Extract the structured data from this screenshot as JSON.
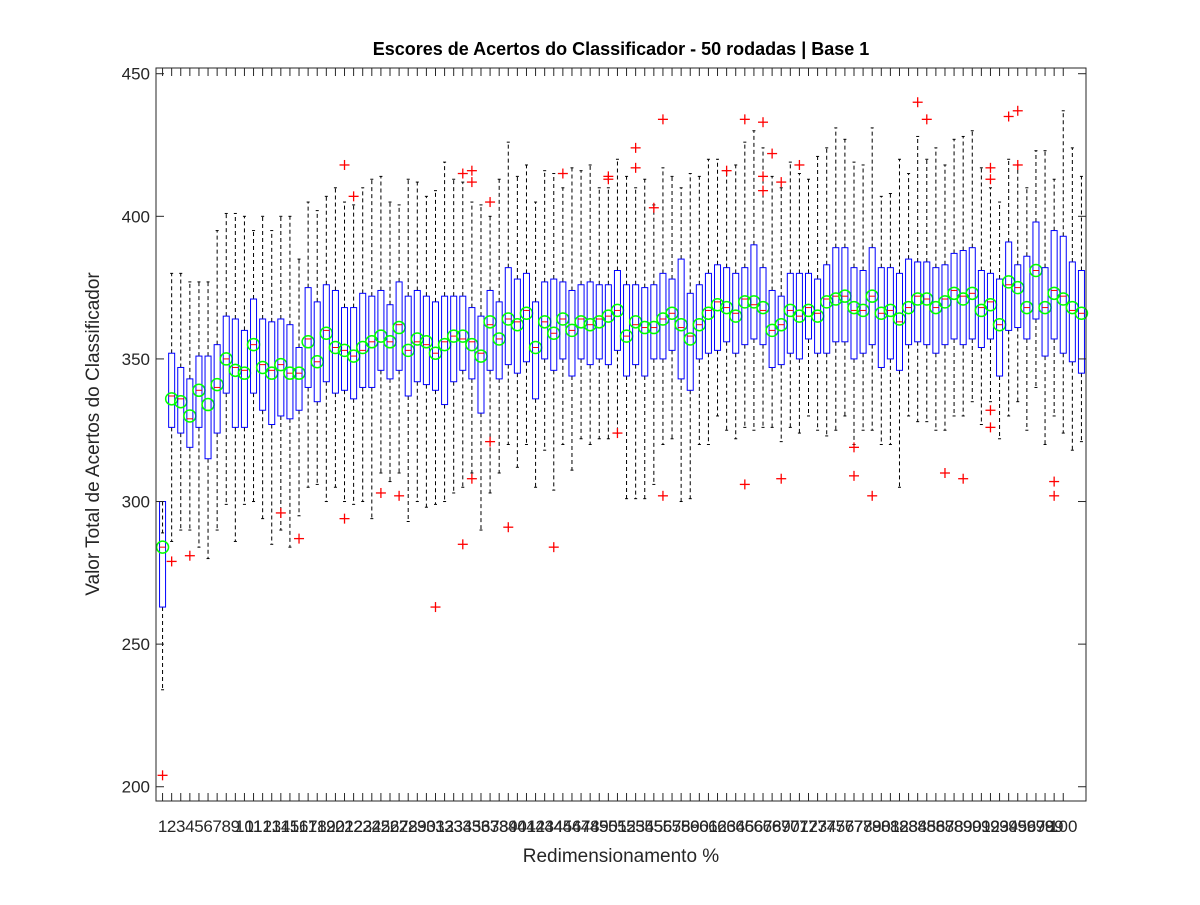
{
  "chart_data": {
    "type": "boxplot",
    "title": "Escores de Acertos do Classificador - 50 rodadas | Base 1",
    "xlabel": "Redimensionamento %",
    "ylabel": "Valor Total de Acertos do Classificador",
    "ylim": [
      195,
      452
    ],
    "y_ticks": [
      200,
      250,
      300,
      350,
      400,
      450
    ],
    "x_ticks": [
      "1",
      "2",
      "3",
      "4",
      "5",
      "6",
      "7",
      "8",
      "9",
      "10",
      "11",
      "12",
      "13",
      "14",
      "15",
      "16",
      "17",
      "18",
      "19",
      "20",
      "21",
      "22",
      "23",
      "24",
      "25",
      "26",
      "27",
      "28",
      "29",
      "30",
      "31",
      "32",
      "33",
      "34",
      "35",
      "36",
      "37",
      "38",
      "39",
      "40",
      "41",
      "42",
      "43",
      "44",
      "45",
      "46",
      "47",
      "48",
      "49",
      "50",
      "51",
      "52",
      "53",
      "54",
      "55",
      "56",
      "57",
      "58",
      "59",
      "60",
      "61",
      "62",
      "63",
      "64",
      "65",
      "66",
      "67",
      "68",
      "69",
      "70",
      "71",
      "72",
      "73",
      "74",
      "75",
      "76",
      "77",
      "78",
      "79",
      "80",
      "81",
      "82",
      "83",
      "84",
      "85",
      "86",
      "87",
      "88",
      "89",
      "90",
      "91",
      "92",
      "93",
      "94",
      "95",
      "96",
      "97",
      "98",
      "99",
      "100"
    ],
    "colors": {
      "box": "#0000ff",
      "whisker": "#000000",
      "median": "#ff0000",
      "outlier": "#ff0000",
      "mean_marker": "#00ff00",
      "axis": "#262626"
    },
    "boxes": [
      {
        "q1": 263,
        "median": 284,
        "q3": 300,
        "mean": 284,
        "wlow": 234,
        "whigh": 289,
        "outliers": [
          204
        ]
      },
      {
        "q1": 326,
        "median": 337,
        "q3": 352,
        "mean": 336,
        "wlow": 286,
        "whigh": 380,
        "outliers": [
          279
        ]
      },
      {
        "q1": 324,
        "median": 336,
        "q3": 347,
        "mean": 335,
        "wlow": 290,
        "whigh": 380,
        "outliers": []
      },
      {
        "q1": 319,
        "median": 329,
        "q3": 343,
        "mean": 330,
        "wlow": 290,
        "whigh": 377,
        "outliers": [
          281
        ]
      },
      {
        "q1": 326,
        "median": 339,
        "q3": 351,
        "mean": 339,
        "wlow": 284,
        "whigh": 377,
        "outliers": []
      },
      {
        "q1": 315,
        "median": 332,
        "q3": 351,
        "mean": 334,
        "wlow": 280,
        "whigh": 377,
        "outliers": []
      },
      {
        "q1": 324,
        "median": 340,
        "q3": 355,
        "mean": 341,
        "wlow": 290,
        "whigh": 395,
        "outliers": []
      },
      {
        "q1": 338,
        "median": 350,
        "q3": 365,
        "mean": 350,
        "wlow": 299,
        "whigh": 401,
        "outliers": []
      },
      {
        "q1": 326,
        "median": 347,
        "q3": 364,
        "mean": 346,
        "wlow": 286,
        "whigh": 401,
        "outliers": []
      },
      {
        "q1": 326,
        "median": 346,
        "q3": 360,
        "mean": 345,
        "wlow": 299,
        "whigh": 400,
        "outliers": []
      },
      {
        "q1": 338,
        "median": 355,
        "q3": 371,
        "mean": 355,
        "wlow": 300,
        "whigh": 395,
        "outliers": []
      },
      {
        "q1": 332,
        "median": 348,
        "q3": 364,
        "mean": 347,
        "wlow": 294,
        "whigh": 400,
        "outliers": []
      },
      {
        "q1": 327,
        "median": 346,
        "q3": 363,
        "mean": 345,
        "wlow": 285,
        "whigh": 395,
        "outliers": []
      },
      {
        "q1": 330,
        "median": 348,
        "q3": 364,
        "mean": 348,
        "wlow": 290,
        "whigh": 400,
        "outliers": [
          296
        ]
      },
      {
        "q1": 329,
        "median": 345,
        "q3": 362,
        "mean": 345,
        "wlow": 284,
        "whigh": 400,
        "outliers": []
      },
      {
        "q1": 332,
        "median": 345,
        "q3": 354,
        "mean": 345,
        "wlow": 295,
        "whigh": 385,
        "outliers": [
          287
        ]
      },
      {
        "q1": 340,
        "median": 357,
        "q3": 375,
        "mean": 356,
        "wlow": 305,
        "whigh": 405,
        "outliers": []
      },
      {
        "q1": 335,
        "median": 349,
        "q3": 370,
        "mean": 349,
        "wlow": 306,
        "whigh": 402,
        "outliers": []
      },
      {
        "q1": 342,
        "median": 360,
        "q3": 376,
        "mean": 359,
        "wlow": 300,
        "whigh": 407,
        "outliers": []
      },
      {
        "q1": 338,
        "median": 354,
        "q3": 374,
        "mean": 354,
        "wlow": 305,
        "whigh": 410,
        "outliers": []
      },
      {
        "q1": 339,
        "median": 353,
        "q3": 368,
        "mean": 353,
        "wlow": 300,
        "whigh": 405,
        "outliers": [
          418,
          294
        ]
      },
      {
        "q1": 336,
        "median": 351,
        "q3": 368,
        "mean": 351,
        "wlow": 299,
        "whigh": 404,
        "outliers": [
          407
        ]
      },
      {
        "q1": 340,
        "median": 353,
        "q3": 373,
        "mean": 354,
        "wlow": 300,
        "whigh": 410,
        "outliers": []
      },
      {
        "q1": 340,
        "median": 356,
        "q3": 372,
        "mean": 356,
        "wlow": 294,
        "whigh": 413,
        "outliers": []
      },
      {
        "q1": 346,
        "median": 360,
        "q3": 374,
        "mean": 358,
        "wlow": 310,
        "whigh": 414,
        "outliers": [
          303
        ]
      },
      {
        "q1": 343,
        "median": 356,
        "q3": 369,
        "mean": 356,
        "wlow": 307,
        "whigh": 405,
        "outliers": []
      },
      {
        "q1": 346,
        "median": 362,
        "q3": 377,
        "mean": 361,
        "wlow": 310,
        "whigh": 404,
        "outliers": [
          302
        ]
      },
      {
        "q1": 337,
        "median": 353,
        "q3": 372,
        "mean": 353,
        "wlow": 293,
        "whigh": 413,
        "outliers": []
      },
      {
        "q1": 342,
        "median": 356,
        "q3": 374,
        "mean": 357,
        "wlow": 300,
        "whigh": 412,
        "outliers": []
      },
      {
        "q1": 341,
        "median": 355,
        "q3": 372,
        "mean": 356,
        "wlow": 298,
        "whigh": 407,
        "outliers": []
      },
      {
        "q1": 339,
        "median": 352,
        "q3": 370,
        "mean": 352,
        "wlow": 299,
        "whigh": 409,
        "outliers": [
          263
        ]
      },
      {
        "q1": 334,
        "median": 356,
        "q3": 372,
        "mean": 355,
        "wlow": 300,
        "whigh": 419,
        "outliers": []
      },
      {
        "q1": 342,
        "median": 358,
        "q3": 372,
        "mean": 358,
        "wlow": 303,
        "whigh": 413,
        "outliers": []
      },
      {
        "q1": 346,
        "median": 357,
        "q3": 372,
        "mean": 358,
        "wlow": 305,
        "whigh": 412,
        "outliers": [
          415,
          285
        ]
      },
      {
        "q1": 343,
        "median": 356,
        "q3": 368,
        "mean": 355,
        "wlow": 310,
        "whigh": 405,
        "outliers": [
          416,
          412,
          308
        ]
      },
      {
        "q1": 331,
        "median": 352,
        "q3": 365,
        "mean": 351,
        "wlow": 290,
        "whigh": 404,
        "outliers": []
      },
      {
        "q1": 346,
        "median": 362,
        "q3": 374,
        "mean": 363,
        "wlow": 303,
        "whigh": 400,
        "outliers": [
          405,
          321
        ]
      },
      {
        "q1": 343,
        "median": 357,
        "q3": 370,
        "mean": 357,
        "wlow": 310,
        "whigh": 413,
        "outliers": []
      },
      {
        "q1": 348,
        "median": 364,
        "q3": 382,
        "mean": 364,
        "wlow": 320,
        "whigh": 426,
        "outliers": [
          291
        ]
      },
      {
        "q1": 345,
        "median": 363,
        "q3": 378,
        "mean": 362,
        "wlow": 312,
        "whigh": 414,
        "outliers": []
      },
      {
        "q1": 349,
        "median": 367,
        "q3": 380,
        "mean": 366,
        "wlow": 320,
        "whigh": 418,
        "outliers": []
      },
      {
        "q1": 336,
        "median": 354,
        "q3": 370,
        "mean": 354,
        "wlow": 305,
        "whigh": 405,
        "outliers": []
      },
      {
        "q1": 350,
        "median": 363,
        "q3": 377,
        "mean": 363,
        "wlow": 318,
        "whigh": 416,
        "outliers": []
      },
      {
        "q1": 346,
        "median": 359,
        "q3": 378,
        "mean": 359,
        "wlow": 304,
        "whigh": 415,
        "outliers": [
          284
        ]
      },
      {
        "q1": 350,
        "median": 364,
        "q3": 377,
        "mean": 364,
        "wlow": 320,
        "whigh": 410,
        "outliers": [
          415
        ]
      },
      {
        "q1": 344,
        "median": 360,
        "q3": 374,
        "mean": 360,
        "wlow": 311,
        "whigh": 417,
        "outliers": []
      },
      {
        "q1": 350,
        "median": 364,
        "q3": 376,
        "mean": 363,
        "wlow": 322,
        "whigh": 416,
        "outliers": []
      },
      {
        "q1": 348,
        "median": 362,
        "q3": 377,
        "mean": 362,
        "wlow": 320,
        "whigh": 418,
        "outliers": []
      },
      {
        "q1": 350,
        "median": 364,
        "q3": 376,
        "mean": 363,
        "wlow": 322,
        "whigh": 410,
        "outliers": []
      },
      {
        "q1": 348,
        "median": 365,
        "q3": 376,
        "mean": 365,
        "wlow": 322,
        "whigh": 410,
        "outliers": [
          414,
          413
        ]
      },
      {
        "q1": 353,
        "median": 367,
        "q3": 381,
        "mean": 367,
        "wlow": 324,
        "whigh": 420,
        "outliers": [
          324
        ]
      },
      {
        "q1": 344,
        "median": 358,
        "q3": 376,
        "mean": 358,
        "wlow": 301,
        "whigh": 414,
        "outliers": []
      },
      {
        "q1": 348,
        "median": 362,
        "q3": 376,
        "mean": 363,
        "wlow": 301,
        "whigh": 410,
        "outliers": [
          424,
          417
        ]
      },
      {
        "q1": 344,
        "median": 361,
        "q3": 375,
        "mean": 361,
        "wlow": 301,
        "whigh": 413,
        "outliers": []
      },
      {
        "q1": 350,
        "median": 361,
        "q3": 376,
        "mean": 361,
        "wlow": 306,
        "whigh": 404,
        "outliers": [
          403
        ]
      },
      {
        "q1": 350,
        "median": 364,
        "q3": 380,
        "mean": 364,
        "wlow": 320,
        "whigh": 417,
        "outliers": [
          434,
          302
        ]
      },
      {
        "q1": 353,
        "median": 366,
        "q3": 378,
        "mean": 366,
        "wlow": 322,
        "whigh": 414,
        "outliers": []
      },
      {
        "q1": 343,
        "median": 361,
        "q3": 385,
        "mean": 362,
        "wlow": 300,
        "whigh": 410,
        "outliers": []
      },
      {
        "q1": 339,
        "median": 358,
        "q3": 373,
        "mean": 357,
        "wlow": 301,
        "whigh": 415,
        "outliers": []
      },
      {
        "q1": 350,
        "median": 362,
        "q3": 376,
        "mean": 362,
        "wlow": 320,
        "whigh": 414,
        "outliers": []
      },
      {
        "q1": 352,
        "median": 367,
        "q3": 380,
        "mean": 366,
        "wlow": 320,
        "whigh": 420,
        "outliers": []
      },
      {
        "q1": 353,
        "median": 370,
        "q3": 383,
        "mean": 369,
        "wlow": 330,
        "whigh": 420,
        "outliers": []
      },
      {
        "q1": 356,
        "median": 368,
        "q3": 382,
        "mean": 368,
        "wlow": 325,
        "whigh": 416,
        "outliers": [
          416
        ]
      },
      {
        "q1": 352,
        "median": 366,
        "q3": 380,
        "mean": 365,
        "wlow": 322,
        "whigh": 418,
        "outliers": []
      },
      {
        "q1": 355,
        "median": 371,
        "q3": 382,
        "mean": 370,
        "wlow": 326,
        "whigh": 426,
        "outliers": [
          434,
          306
        ]
      },
      {
        "q1": 357,
        "median": 369,
        "q3": 390,
        "mean": 370,
        "wlow": 325,
        "whigh": 430,
        "outliers": []
      },
      {
        "q1": 355,
        "median": 367,
        "q3": 382,
        "mean": 368,
        "wlow": 326,
        "whigh": 424,
        "outliers": [
          433,
          414,
          409
        ]
      },
      {
        "q1": 347,
        "median": 360,
        "q3": 374,
        "mean": 360,
        "wlow": 326,
        "whigh": 414,
        "outliers": [
          422
        ]
      },
      {
        "q1": 348,
        "median": 362,
        "q3": 372,
        "mean": 362,
        "wlow": 321,
        "whigh": 410,
        "outliers": [
          412,
          308
        ]
      },
      {
        "q1": 352,
        "median": 367,
        "q3": 380,
        "mean": 367,
        "wlow": 326,
        "whigh": 419,
        "outliers": []
      },
      {
        "q1": 350,
        "median": 365,
        "q3": 380,
        "mean": 365,
        "wlow": 324,
        "whigh": 415,
        "outliers": [
          418
        ]
      },
      {
        "q1": 357,
        "median": 368,
        "q3": 380,
        "mean": 367,
        "wlow": 330,
        "whigh": 413,
        "outliers": []
      },
      {
        "q1": 352,
        "median": 366,
        "q3": 378,
        "mean": 365,
        "wlow": 325,
        "whigh": 421,
        "outliers": []
      },
      {
        "q1": 352,
        "median": 371,
        "q3": 383,
        "mean": 370,
        "wlow": 323,
        "whigh": 424,
        "outliers": []
      },
      {
        "q1": 356,
        "median": 372,
        "q3": 389,
        "mean": 371,
        "wlow": 325,
        "whigh": 431,
        "outliers": []
      },
      {
        "q1": 356,
        "median": 372,
        "q3": 389,
        "mean": 372,
        "wlow": 330,
        "whigh": 427,
        "outliers": []
      },
      {
        "q1": 350,
        "median": 367,
        "q3": 382,
        "mean": 368,
        "wlow": 320,
        "whigh": 419,
        "outliers": [
          319,
          309
        ]
      },
      {
        "q1": 352,
        "median": 367,
        "q3": 381,
        "mean": 367,
        "wlow": 325,
        "whigh": 418,
        "outliers": []
      },
      {
        "q1": 355,
        "median": 372,
        "q3": 389,
        "mean": 372,
        "wlow": 325,
        "whigh": 431,
        "outliers": [
          302
        ]
      },
      {
        "q1": 347,
        "median": 366,
        "q3": 382,
        "mean": 366,
        "wlow": 320,
        "whigh": 407,
        "outliers": []
      },
      {
        "q1": 350,
        "median": 367,
        "q3": 382,
        "mean": 367,
        "wlow": 320,
        "whigh": 408,
        "outliers": []
      },
      {
        "q1": 346,
        "median": 363,
        "q3": 380,
        "mean": 364,
        "wlow": 305,
        "whigh": 420,
        "outliers": []
      },
      {
        "q1": 355,
        "median": 368,
        "q3": 385,
        "mean": 368,
        "wlow": 330,
        "whigh": 415,
        "outliers": []
      },
      {
        "q1": 356,
        "median": 372,
        "q3": 384,
        "mean": 371,
        "wlow": 328,
        "whigh": 428,
        "outliers": [
          440
        ]
      },
      {
        "q1": 355,
        "median": 371,
        "q3": 384,
        "mean": 371,
        "wlow": 328,
        "whigh": 420,
        "outliers": [
          434
        ]
      },
      {
        "q1": 352,
        "median": 368,
        "q3": 382,
        "mean": 368,
        "wlow": 325,
        "whigh": 424,
        "outliers": []
      },
      {
        "q1": 355,
        "median": 371,
        "q3": 383,
        "mean": 370,
        "wlow": 325,
        "whigh": 418,
        "outliers": [
          310
        ]
      },
      {
        "q1": 357,
        "median": 374,
        "q3": 387,
        "mean": 373,
        "wlow": 330,
        "whigh": 427,
        "outliers": []
      },
      {
        "q1": 355,
        "median": 372,
        "q3": 388,
        "mean": 371,
        "wlow": 330,
        "whigh": 428,
        "outliers": [
          308
        ]
      },
      {
        "q1": 357,
        "median": 373,
        "q3": 389,
        "mean": 373,
        "wlow": 335,
        "whigh": 430,
        "outliers": []
      },
      {
        "q1": 354,
        "median": 368,
        "q3": 381,
        "mean": 367,
        "wlow": 327,
        "whigh": 417,
        "outliers": []
      },
      {
        "q1": 357,
        "median": 370,
        "q3": 380,
        "mean": 369,
        "wlow": 335,
        "whigh": 410,
        "outliers": [
          417,
          413,
          332,
          326
        ]
      },
      {
        "q1": 344,
        "median": 362,
        "q3": 378,
        "mean": 362,
        "wlow": 322,
        "whigh": 405,
        "outliers": []
      },
      {
        "q1": 360,
        "median": 376,
        "q3": 391,
        "mean": 377,
        "wlow": 330,
        "whigh": 420,
        "outliers": [
          435
        ]
      },
      {
        "q1": 361,
        "median": 375,
        "q3": 383,
        "mean": 375,
        "wlow": 335,
        "whigh": 418,
        "outliers": [
          437,
          418
        ]
      },
      {
        "q1": 357,
        "median": 368,
        "q3": 386,
        "mean": 368,
        "wlow": 325,
        "whigh": 410,
        "outliers": []
      },
      {
        "q1": 364,
        "median": 381,
        "q3": 398,
        "mean": 381,
        "wlow": 340,
        "whigh": 423,
        "outliers": []
      },
      {
        "q1": 351,
        "median": 368,
        "q3": 382,
        "mean": 368,
        "wlow": 320,
        "whigh": 423,
        "outliers": []
      },
      {
        "q1": 357,
        "median": 374,
        "q3": 395,
        "mean": 373,
        "wlow": 330,
        "whigh": 413,
        "outliers": [
          307,
          302
        ]
      },
      {
        "q1": 352,
        "median": 372,
        "q3": 393,
        "mean": 371,
        "wlow": 324,
        "whigh": 437,
        "outliers": []
      },
      {
        "q1": 349,
        "median": 367,
        "q3": 384,
        "mean": 368,
        "wlow": 318,
        "whigh": 424,
        "outliers": []
      },
      {
        "q1": 345,
        "median": 366,
        "q3": 381,
        "mean": 366,
        "wlow": 321,
        "whigh": 414,
        "outliers": []
      }
    ]
  }
}
